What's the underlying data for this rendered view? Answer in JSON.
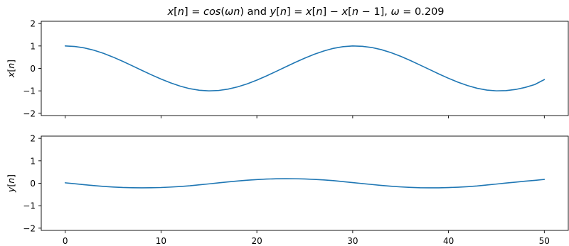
{
  "figure": {
    "title_parts": [
      {
        "text": "x",
        "italic": true
      },
      {
        "text": "[",
        "italic": false
      },
      {
        "text": "n",
        "italic": true
      },
      {
        "text": "] = ",
        "italic": false
      },
      {
        "text": "cos",
        "italic": true
      },
      {
        "text": "(",
        "italic": false
      },
      {
        "text": "ωn",
        "italic": true
      },
      {
        "text": ") and ",
        "italic": false
      },
      {
        "text": "y",
        "italic": true
      },
      {
        "text": "[",
        "italic": false
      },
      {
        "text": "n",
        "italic": true
      },
      {
        "text": "] = ",
        "italic": false
      },
      {
        "text": "x",
        "italic": true
      },
      {
        "text": "[",
        "italic": false
      },
      {
        "text": "n",
        "italic": true
      },
      {
        "text": "] − ",
        "italic": false
      },
      {
        "text": "x",
        "italic": true
      },
      {
        "text": "[",
        "italic": false
      },
      {
        "text": "n",
        "italic": true
      },
      {
        "text": " − 1], ",
        "italic": false
      },
      {
        "text": "ω",
        "italic": true
      },
      {
        "text": " = 0.209",
        "italic": false
      }
    ],
    "line_color": "#1f77b4"
  },
  "chart_data": [
    {
      "type": "line",
      "title": "x[n] = cos(ωn) and y[n] = x[n] − x[n − 1], ω = 0.209",
      "ylabel_parts": [
        {
          "text": "x",
          "italic": true
        },
        {
          "text": "[",
          "italic": false
        },
        {
          "text": "n",
          "italic": true
        },
        {
          "text": "]",
          "italic": false
        }
      ],
      "xlim": [
        -2.5,
        52.5
      ],
      "ylim": [
        -2.1,
        2.1
      ],
      "yticks": [
        -2,
        -1,
        0,
        1,
        2
      ],
      "ytick_labels": [
        "−2",
        "−1",
        "0",
        "1",
        "2"
      ],
      "xticks": [
        0,
        10,
        20,
        30,
        40,
        50
      ],
      "show_x_tick_labels": false,
      "series": [
        {
          "x": [
            0,
            1,
            2,
            3,
            4,
            5,
            6,
            7,
            8,
            9,
            10,
            11,
            12,
            13,
            14,
            15,
            16,
            17,
            18,
            19,
            20,
            21,
            22,
            23,
            24,
            25,
            26,
            27,
            28,
            29,
            30,
            31,
            32,
            33,
            34,
            35,
            36,
            37,
            38,
            39,
            40,
            41,
            42,
            43,
            44,
            45,
            46,
            47,
            48,
            49,
            50
          ],
          "values": [
            1.0,
            0.978,
            0.913,
            0.809,
            0.67,
            0.503,
            0.315,
            0.116,
            -0.087,
            -0.286,
            -0.475,
            -0.645,
            -0.79,
            -0.903,
            -0.973,
            -1.0,
            -0.983,
            -0.922,
            -0.822,
            -0.687,
            -0.522,
            -0.336,
            -0.136,
            0.067,
            0.268,
            0.458,
            0.631,
            0.778,
            0.895,
            0.969,
            0.999,
            0.986,
            0.931,
            0.835,
            0.703,
            0.541,
            0.356,
            0.156,
            -0.046,
            -0.249,
            -0.44,
            -0.615,
            -0.766,
            -0.886,
            -0.964,
            -0.999,
            -0.988,
            -0.939,
            -0.847,
            -0.719,
            -0.497
          ]
        }
      ]
    },
    {
      "type": "line",
      "title": "",
      "ylabel_parts": [
        {
          "text": "y",
          "italic": true
        },
        {
          "text": "[",
          "italic": false
        },
        {
          "text": "n",
          "italic": true
        },
        {
          "text": "]",
          "italic": false
        }
      ],
      "xlim": [
        -2.5,
        52.5
      ],
      "ylim": [
        -2.1,
        2.1
      ],
      "yticks": [
        -2,
        -1,
        0,
        1,
        2
      ],
      "ytick_labels": [
        "−2",
        "−1",
        "0",
        "1",
        "2"
      ],
      "xticks": [
        0,
        10,
        20,
        30,
        40,
        50
      ],
      "xtick_labels": [
        "0",
        "10",
        "20",
        "30",
        "40",
        "50"
      ],
      "show_x_tick_labels": true,
      "series": [
        {
          "x": [
            0,
            1,
            2,
            3,
            4,
            5,
            6,
            7,
            8,
            9,
            10,
            11,
            12,
            13,
            14,
            15,
            16,
            17,
            18,
            19,
            20,
            21,
            22,
            23,
            24,
            25,
            26,
            27,
            28,
            29,
            30,
            31,
            32,
            33,
            34,
            35,
            36,
            37,
            38,
            39,
            40,
            41,
            42,
            43,
            44,
            45,
            46,
            47,
            48,
            49,
            50
          ],
          "values": [
            0.02,
            -0.021,
            -0.065,
            -0.105,
            -0.139,
            -0.167,
            -0.188,
            -0.199,
            -0.203,
            -0.199,
            -0.189,
            -0.17,
            -0.145,
            -0.113,
            -0.07,
            -0.027,
            0.017,
            0.061,
            0.1,
            0.135,
            0.165,
            0.186,
            0.2,
            0.203,
            0.201,
            0.19,
            0.173,
            0.147,
            0.117,
            0.074,
            0.03,
            -0.013,
            -0.055,
            -0.096,
            -0.132,
            -0.162,
            -0.185,
            -0.2,
            -0.202,
            -0.203,
            -0.191,
            -0.175,
            -0.151,
            -0.12,
            -0.078,
            -0.035,
            0.011,
            0.049,
            0.092,
            0.128,
            0.171
          ]
        }
      ]
    }
  ]
}
